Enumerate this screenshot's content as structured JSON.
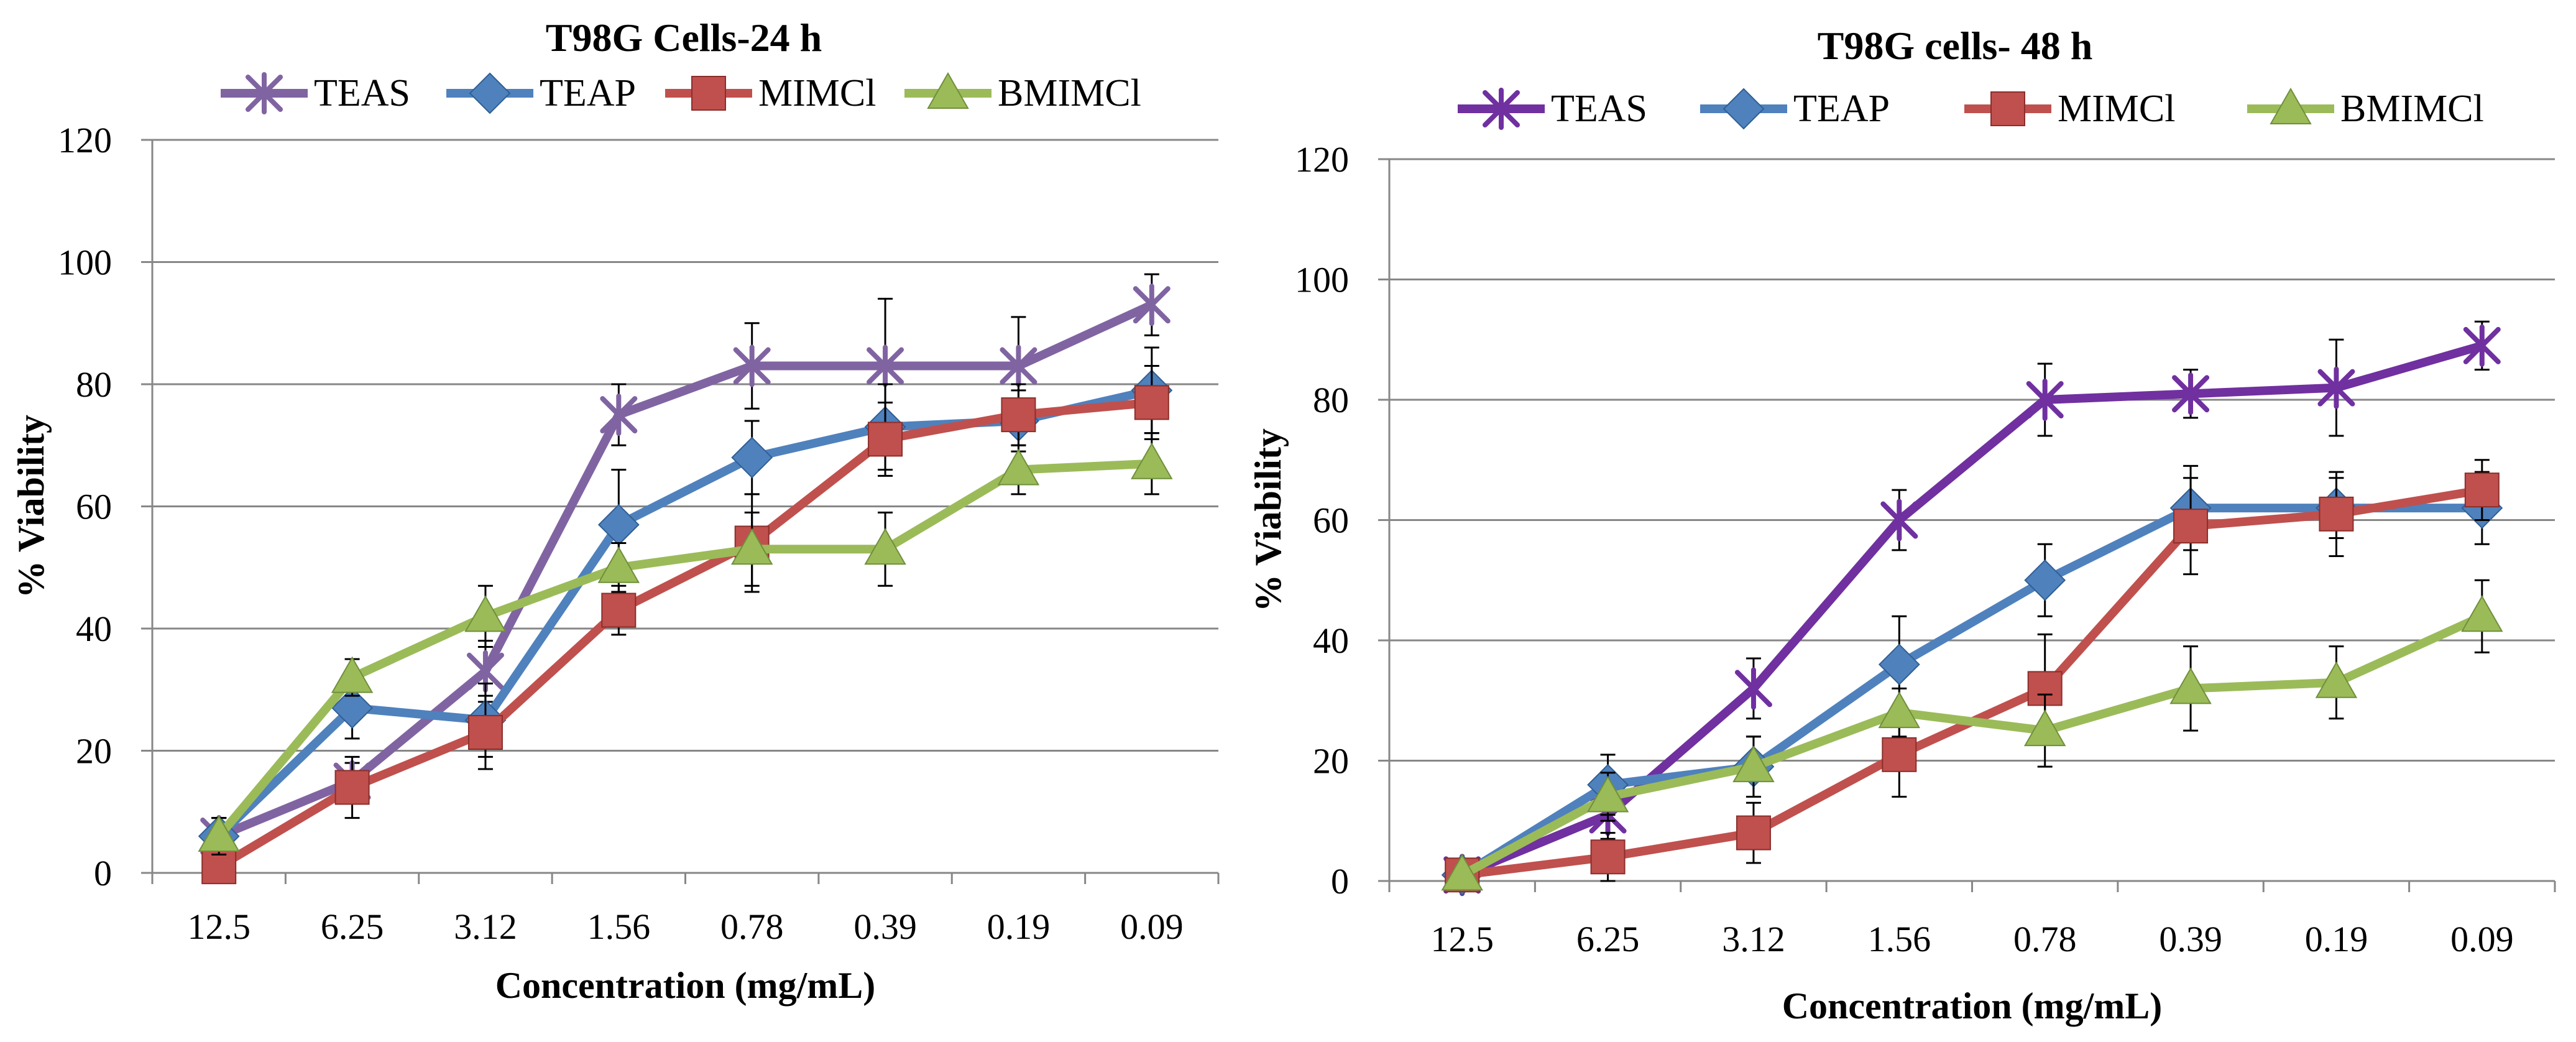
{
  "chart_data": [
    {
      "type": "line",
      "title": "T98G Cells-24 h",
      "xlabel": "Concentration (mg/mL)",
      "ylabel": "% Viability",
      "categories": [
        "12.5",
        "6.25",
        "3.12",
        "1.56",
        "0.78",
        "0.39",
        "0.19",
        "0.09"
      ],
      "ylim": [
        0,
        120
      ],
      "yticks": [
        "0",
        "20",
        "40",
        "60",
        "80",
        "100",
        "120"
      ],
      "grid": true,
      "legend": "top",
      "series": [
        {
          "name": "TEAS",
          "marker": "star",
          "color": "#8064a2",
          "values": [
            6,
            15,
            33,
            75,
            83,
            83,
            83,
            93
          ],
          "errors": [
            3,
            3,
            5,
            5,
            7,
            11,
            8,
            5
          ]
        },
        {
          "name": "TEAP",
          "marker": "diamond",
          "color": "#4f81bd",
          "values": [
            6,
            27,
            25,
            57,
            68,
            73,
            74,
            79
          ],
          "errors": [
            3,
            5,
            6,
            9,
            6,
            7,
            5,
            7
          ]
        },
        {
          "name": "MIMCl",
          "marker": "square",
          "color": "#c0504d",
          "values": [
            1,
            14,
            23,
            43,
            54,
            71,
            75,
            77
          ],
          "errors": [
            1,
            5,
            6,
            4,
            8,
            6,
            5,
            6
          ]
        },
        {
          "name": "BMIMCl",
          "marker": "triangle",
          "color": "#9bbb59",
          "values": [
            6,
            32,
            42,
            50,
            53,
            53,
            66,
            67
          ],
          "errors": [
            3,
            3,
            5,
            4,
            6,
            6,
            4,
            5
          ]
        }
      ]
    },
    {
      "type": "line",
      "title": "T98G cells- 48 h",
      "xlabel": "Concentration (mg/mL)",
      "ylabel": "% Viability",
      "categories": [
        "12.5",
        "6.25",
        "3.12",
        "1.56",
        "0.78",
        "0.39",
        "0.19",
        "0.09"
      ],
      "ylim": [
        0,
        120
      ],
      "yticks": [
        "0",
        "20",
        "40",
        "60",
        "80",
        "100",
        "120"
      ],
      "grid": true,
      "legend": "top",
      "series": [
        {
          "name": "TEAS",
          "marker": "star",
          "color": "#7030a0",
          "values": [
            1,
            11,
            32,
            60,
            80,
            81,
            82,
            89
          ],
          "errors": [
            1,
            4,
            5,
            5,
            6,
            4,
            8,
            4
          ]
        },
        {
          "name": "TEAP",
          "marker": "diamond",
          "color": "#4f81bd",
          "values": [
            1,
            16,
            19,
            36,
            50,
            62,
            62,
            62
          ],
          "errors": [
            1,
            5,
            5,
            8,
            6,
            7,
            5,
            6
          ]
        },
        {
          "name": "MIMCl",
          "marker": "square",
          "color": "#c0504d",
          "values": [
            1,
            4,
            8,
            21,
            32,
            59,
            61,
            65
          ],
          "errors": [
            1,
            4,
            5,
            7,
            9,
            8,
            7,
            5
          ]
        },
        {
          "name": "BMIMCl",
          "marker": "triangle",
          "color": "#9bbb59",
          "values": [
            1,
            14,
            19,
            28,
            25,
            32,
            33,
            44
          ],
          "errors": [
            1,
            4,
            5,
            4,
            6,
            7,
            6,
            6
          ]
        }
      ]
    }
  ]
}
